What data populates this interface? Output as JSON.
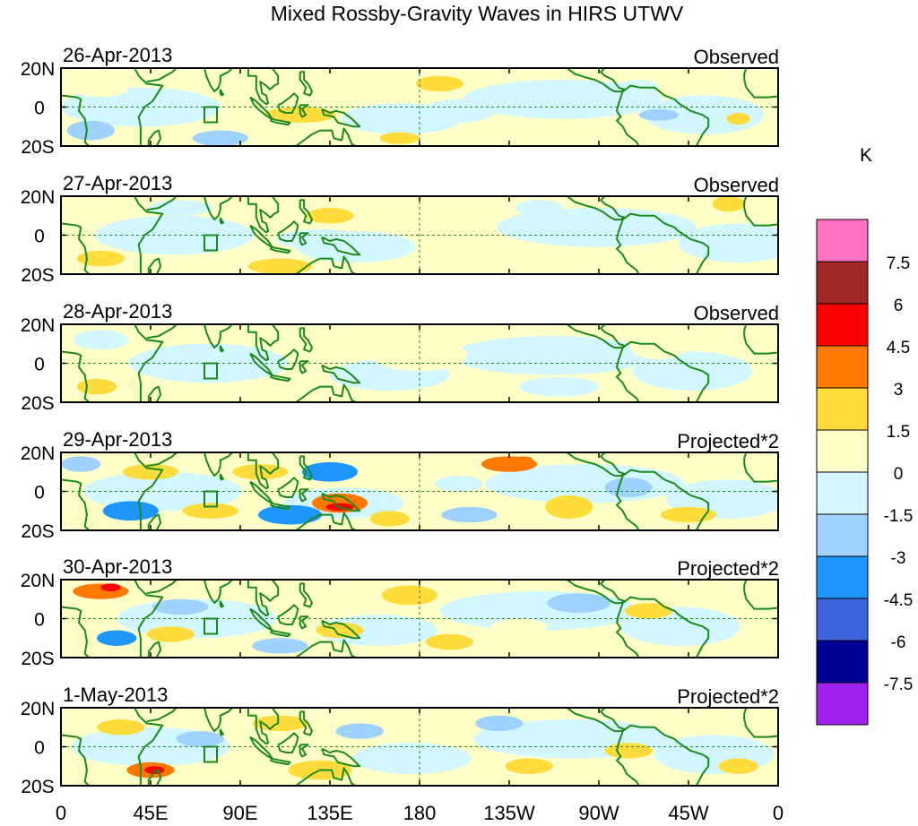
{
  "chart_data": {
    "type": "heatmap",
    "title": "Mixed Rossby-Gravity Waves in HIRS UTWV",
    "units": "K",
    "y_ticks": [
      "20N",
      "0",
      "20S"
    ],
    "x_ticks": [
      "0",
      "45E",
      "90E",
      "135E",
      "180",
      "135W",
      "90W",
      "45W",
      "0"
    ],
    "lat_range": [
      -20,
      20
    ],
    "lon_range": [
      0,
      360
    ],
    "colorbar": {
      "labels": [
        "7.5",
        "6",
        "4.5",
        "3",
        "1.5",
        "0",
        "-1.5",
        "-3",
        "-4.5",
        "-6",
        "-7.5"
      ],
      "bins": [
        {
          "range": "> 7.5",
          "color": "#ff72c2"
        },
        {
          "range": "6 to 7.5",
          "color": "#a02828"
        },
        {
          "range": "4.5 to 6",
          "color": "#ff0000"
        },
        {
          "range": "3 to 4.5",
          "color": "#ff7800"
        },
        {
          "range": "1.5 to 3",
          "color": "#ffdc3c"
        },
        {
          "range": "0 to 1.5",
          "color": "#ffffc8"
        },
        {
          "range": "-1.5 to 0",
          "color": "#d2f7ff"
        },
        {
          "range": "-3 to -1.5",
          "color": "#a0d2ff"
        },
        {
          "range": "-4.5 to -3",
          "color": "#1e96ff"
        },
        {
          "range": "-6 to -4.5",
          "color": "#3c64dc"
        },
        {
          "range": "-7.5 to -6",
          "color": "#000096"
        },
        {
          "range": "< -7.5",
          "color": "#a020f0"
        }
      ]
    },
    "panels": [
      {
        "date": "26-Apr-2013",
        "label": "Observed",
        "anomalies": [
          {
            "lon": 20,
            "lat": 10,
            "rlon": 14,
            "rlat": 5,
            "v": 1.0
          },
          {
            "lon": 120,
            "lat": -4,
            "rlon": 18,
            "rlat": 4,
            "v": 2.0
          },
          {
            "lon": 190,
            "lat": 12,
            "rlon": 12,
            "rlat": 4,
            "v": 2.0
          },
          {
            "lon": 170,
            "lat": -16,
            "rlon": 10,
            "rlat": 3,
            "v": 2.0
          },
          {
            "lon": 15,
            "lat": -12,
            "rlon": 12,
            "rlat": 5,
            "v": -2.0
          },
          {
            "lon": 80,
            "lat": -16,
            "rlon": 14,
            "rlat": 4,
            "v": -2.0
          },
          {
            "lon": 200,
            "lat": -2,
            "rlon": 18,
            "rlat": 6,
            "v": -1.0
          },
          {
            "lon": 290,
            "lat": 10,
            "rlon": 10,
            "rlat": 4,
            "v": -1.0
          },
          {
            "lon": 300,
            "lat": -4,
            "rlon": 10,
            "rlat": 3,
            "v": -2.0
          },
          {
            "lon": 340,
            "lat": -6,
            "rlon": 6,
            "rlat": 3,
            "v": 2.0
          }
        ]
      },
      {
        "date": "27-Apr-2013",
        "label": "Observed",
        "anomalies": [
          {
            "lon": 135,
            "lat": 10,
            "rlon": 12,
            "rlat": 4,
            "v": 2.0
          },
          {
            "lon": 110,
            "lat": -16,
            "rlon": 16,
            "rlat": 4,
            "v": 2.0
          },
          {
            "lon": 20,
            "lat": -12,
            "rlon": 12,
            "rlat": 4,
            "v": 2.0
          },
          {
            "lon": 130,
            "lat": -2,
            "rlon": 22,
            "rlat": 5,
            "v": -1.0
          },
          {
            "lon": 240,
            "lat": 14,
            "rlon": 12,
            "rlat": 4,
            "v": -1.0
          },
          {
            "lon": 335,
            "lat": 16,
            "rlon": 8,
            "rlat": 4,
            "v": 2.0
          },
          {
            "lon": 60,
            "lat": 14,
            "rlon": 16,
            "rlat": 4,
            "v": -1.0
          },
          {
            "lon": 270,
            "lat": -12,
            "rlon": 14,
            "rlat": 4,
            "v": 1.0
          }
        ]
      },
      {
        "date": "28-Apr-2013",
        "label": "Observed",
        "anomalies": [
          {
            "lon": 18,
            "lat": -12,
            "rlon": 10,
            "rlat": 4,
            "v": 2.0
          },
          {
            "lon": 90,
            "lat": -16,
            "rlon": 16,
            "rlat": 4,
            "v": 1.0
          },
          {
            "lon": 180,
            "lat": 4,
            "rlon": 24,
            "rlat": 8,
            "v": 1.0
          },
          {
            "lon": 250,
            "lat": -12,
            "rlon": 20,
            "rlat": 5,
            "v": -1.0
          },
          {
            "lon": 20,
            "lat": 12,
            "rlon": 14,
            "rlat": 5,
            "v": -1.0
          },
          {
            "lon": 300,
            "lat": 8,
            "rlon": 14,
            "rlat": 6,
            "v": 1.0
          }
        ]
      },
      {
        "date": "29-Apr-2013",
        "label": "Projected*2",
        "anomalies": [
          {
            "lon": 10,
            "lat": 14,
            "rlon": 10,
            "rlat": 4,
            "v": -2.0
          },
          {
            "lon": 35,
            "lat": -10,
            "rlon": 14,
            "rlat": 5,
            "v": -3.5
          },
          {
            "lon": 45,
            "lat": 10,
            "rlon": 14,
            "rlat": 4,
            "v": 2.0
          },
          {
            "lon": 75,
            "lat": -10,
            "rlon": 14,
            "rlat": 4,
            "v": 2.0
          },
          {
            "lon": 100,
            "lat": 10,
            "rlon": 14,
            "rlat": 4,
            "v": 2.0
          },
          {
            "lon": 115,
            "lat": -12,
            "rlon": 16,
            "rlat": 5,
            "v": -3.5
          },
          {
            "lon": 140,
            "lat": -6,
            "rlon": 14,
            "rlat": 5,
            "v": 3.5
          },
          {
            "lon": 140,
            "lat": -8,
            "rlon": 7,
            "rlat": 2,
            "v": 5.0
          },
          {
            "lon": 135,
            "lat": 10,
            "rlon": 14,
            "rlat": 5,
            "v": -3.5
          },
          {
            "lon": 165,
            "lat": -14,
            "rlon": 10,
            "rlat": 4,
            "v": 2.0
          },
          {
            "lon": 205,
            "lat": -12,
            "rlon": 14,
            "rlat": 4,
            "v": -2.0
          },
          {
            "lon": 225,
            "lat": 14,
            "rlon": 14,
            "rlat": 4,
            "v": 3.0
          },
          {
            "lon": 232,
            "lat": 16,
            "rlon": 5,
            "rlat": 2,
            "v": 4.0
          },
          {
            "lon": 255,
            "lat": -8,
            "rlon": 12,
            "rlat": 6,
            "v": 2.0
          },
          {
            "lon": 285,
            "lat": 2,
            "rlon": 12,
            "rlat": 5,
            "v": -3.0
          },
          {
            "lon": 315,
            "lat": -12,
            "rlon": 14,
            "rlat": 4,
            "v": 2.0
          },
          {
            "lon": 200,
            "lat": 4,
            "rlon": 12,
            "rlat": 4,
            "v": -1.0
          }
        ]
      },
      {
        "date": "30-Apr-2013",
        "label": "Projected*2",
        "anomalies": [
          {
            "lon": 28,
            "lat": -10,
            "rlon": 10,
            "rlat": 4,
            "v": -3.5
          },
          {
            "lon": 20,
            "lat": 14,
            "rlon": 14,
            "rlat": 4,
            "v": 3.0
          },
          {
            "lon": 25,
            "lat": 16,
            "rlon": 5,
            "rlat": 2,
            "v": 4.5
          },
          {
            "lon": 55,
            "lat": -8,
            "rlon": 12,
            "rlat": 4,
            "v": 2.0
          },
          {
            "lon": 60,
            "lat": 6,
            "rlon": 14,
            "rlat": 4,
            "v": -2.0
          },
          {
            "lon": 110,
            "lat": -14,
            "rlon": 14,
            "rlat": 4,
            "v": -2.0
          },
          {
            "lon": 140,
            "lat": -6,
            "rlon": 12,
            "rlat": 4,
            "v": 2.0
          },
          {
            "lon": 175,
            "lat": 12,
            "rlon": 14,
            "rlat": 5,
            "v": 2.0
          },
          {
            "lon": 195,
            "lat": -12,
            "rlon": 12,
            "rlat": 4,
            "v": 2.0
          },
          {
            "lon": 260,
            "lat": 8,
            "rlon": 16,
            "rlat": 5,
            "v": -2.0
          },
          {
            "lon": 295,
            "lat": 4,
            "rlon": 12,
            "rlat": 4,
            "v": 2.0
          },
          {
            "lon": 230,
            "lat": -4,
            "rlon": 14,
            "rlat": 4,
            "v": 1.0
          }
        ]
      },
      {
        "date": "1-May-2013",
        "label": "Projected*2",
        "anomalies": [
          {
            "lon": 45,
            "lat": -12,
            "rlon": 12,
            "rlat": 4,
            "v": 3.0
          },
          {
            "lon": 47,
            "lat": -12,
            "rlon": 5,
            "rlat": 2,
            "v": 4.5
          },
          {
            "lon": 30,
            "lat": 10,
            "rlon": 12,
            "rlat": 4,
            "v": 2.0
          },
          {
            "lon": 70,
            "lat": 4,
            "rlon": 12,
            "rlat": 4,
            "v": -2.0
          },
          {
            "lon": 110,
            "lat": 12,
            "rlon": 14,
            "rlat": 4,
            "v": 2.0
          },
          {
            "lon": 130,
            "lat": -12,
            "rlon": 16,
            "rlat": 5,
            "v": 2.0
          },
          {
            "lon": 150,
            "lat": 8,
            "rlon": 12,
            "rlat": 4,
            "v": -2.0
          },
          {
            "lon": 220,
            "lat": 12,
            "rlon": 12,
            "rlat": 4,
            "v": -2.0
          },
          {
            "lon": 235,
            "lat": -10,
            "rlon": 12,
            "rlat": 4,
            "v": 2.0
          },
          {
            "lon": 285,
            "lat": -2,
            "rlon": 12,
            "rlat": 4,
            "v": 2.0
          },
          {
            "lon": 310,
            "lat": 10,
            "rlon": 12,
            "rlat": 4,
            "v": 1.0
          },
          {
            "lon": 340,
            "lat": -10,
            "rlon": 10,
            "rlat": 4,
            "v": 2.0
          }
        ]
      }
    ]
  }
}
